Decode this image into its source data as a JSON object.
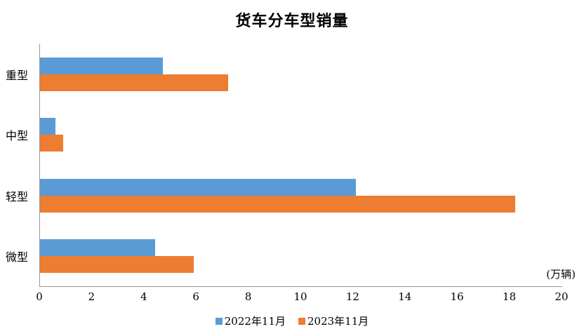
{
  "chart_data": {
    "type": "bar",
    "orientation": "horizontal",
    "title": "货车分车型销量",
    "unit_label": "(万辆)",
    "categories": [
      "重型",
      "中型",
      "轻型",
      "微型"
    ],
    "series": [
      {
        "name": "2022年11月",
        "color": "#5B9BD5",
        "values": [
          4.7,
          0.6,
          12.1,
          4.4
        ]
      },
      {
        "name": "2023年11月",
        "color": "#ED7D31",
        "values": [
          7.2,
          0.9,
          18.2,
          5.9
        ]
      }
    ],
    "xlim": [
      0,
      20
    ],
    "x_ticks": [
      0,
      2,
      4,
      6,
      8,
      10,
      12,
      14,
      16,
      18,
      20
    ],
    "legend_position": "bottom",
    "grid": false,
    "axis_color": "#969696",
    "background_color": "#ffffff"
  }
}
